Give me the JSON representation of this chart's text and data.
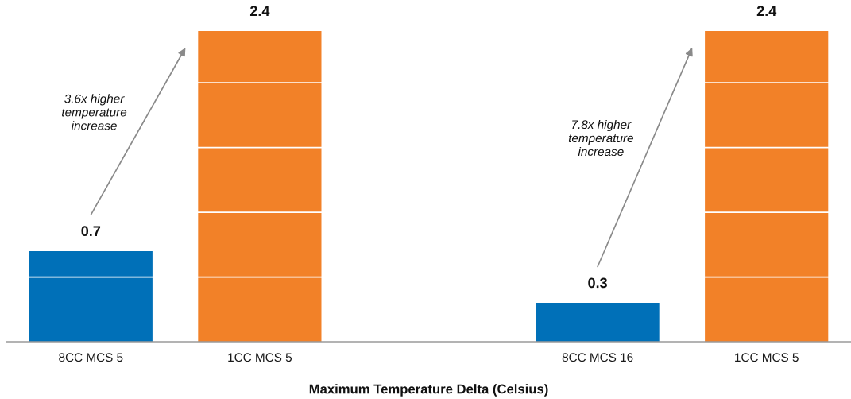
{
  "chart_data": {
    "type": "bar",
    "xlabel": "Maximum Temperature Delta (Celsius)",
    "categories": [
      "8CC MCS 5",
      "1CC MCS 5",
      null,
      "8CC MCS 16",
      "1CC MCS 5"
    ],
    "values": [
      0.7,
      2.4,
      null,
      0.3,
      2.4
    ],
    "colors": [
      "#0070b8",
      "#f28128",
      null,
      "#0070b8",
      "#f28128"
    ],
    "data_labels": true,
    "yticks": [
      {
        "value": 0.5,
        "label": null
      },
      {
        "value": 1.0,
        "label": null
      },
      {
        "value": 1.5,
        "label": null
      },
      {
        "value": 2.0,
        "label": null
      }
    ],
    "grid": "y",
    "tick_labels": "x",
    "annotations": [
      "3.6x higher\ntemperature\nincrease",
      "7.8x higher\ntemperature\nincrease"
    ]
  }
}
